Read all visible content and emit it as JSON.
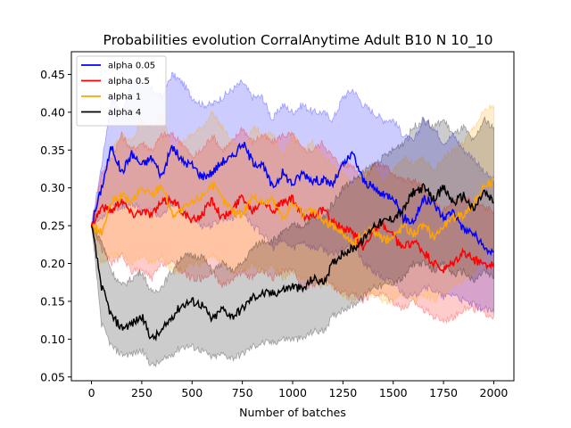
{
  "chart_data": {
    "type": "line",
    "title": "Probabilities evolution CorralAnytime Adult B10 N 10_10",
    "xlabel": "Number of batches",
    "ylabel": "",
    "xlim": [
      -100,
      2100
    ],
    "ylim": [
      0.045,
      0.48
    ],
    "xticks": [
      0,
      250,
      500,
      750,
      1000,
      1250,
      1500,
      1750,
      2000
    ],
    "xtick_labels": [
      "0",
      "250",
      "500",
      "750",
      "1000",
      "1250",
      "1500",
      "1750",
      "2000"
    ],
    "yticks": [
      0.05,
      0.1,
      0.15,
      0.2,
      0.25,
      0.3,
      0.35,
      0.4,
      0.45
    ],
    "ytick_labels": [
      "0.05",
      "0.10",
      "0.15",
      "0.20",
      "0.25",
      "0.30",
      "0.35",
      "0.40",
      "0.45"
    ],
    "grid": false,
    "legend_position": "top-left",
    "x": [
      0,
      50,
      100,
      150,
      200,
      250,
      300,
      350,
      400,
      450,
      500,
      550,
      600,
      650,
      700,
      750,
      800,
      850,
      900,
      950,
      1000,
      1050,
      1100,
      1150,
      1200,
      1250,
      1300,
      1350,
      1400,
      1450,
      1500,
      1550,
      1600,
      1650,
      1700,
      1750,
      1800,
      1850,
      1900,
      1950,
      2000
    ],
    "series": [
      {
        "name": "alpha 0.05",
        "color": "#0000ff",
        "values": [
          0.25,
          0.3,
          0.355,
          0.32,
          0.345,
          0.33,
          0.34,
          0.315,
          0.355,
          0.335,
          0.33,
          0.315,
          0.32,
          0.335,
          0.34,
          0.36,
          0.335,
          0.33,
          0.3,
          0.32,
          0.305,
          0.32,
          0.31,
          0.31,
          0.305,
          0.33,
          0.345,
          0.31,
          0.3,
          0.29,
          0.29,
          0.26,
          0.255,
          0.285,
          0.28,
          0.26,
          0.27,
          0.245,
          0.24,
          0.22,
          0.215
        ],
        "band_low": [
          0.25,
          0.26,
          0.28,
          0.27,
          0.28,
          0.27,
          0.27,
          0.26,
          0.28,
          0.27,
          0.26,
          0.25,
          0.25,
          0.26,
          0.26,
          0.27,
          0.25,
          0.24,
          0.22,
          0.23,
          0.22,
          0.23,
          0.22,
          0.22,
          0.21,
          0.22,
          0.23,
          0.2,
          0.19,
          0.18,
          0.175,
          0.16,
          0.155,
          0.17,
          0.165,
          0.155,
          0.16,
          0.15,
          0.145,
          0.14,
          0.135
        ],
        "band_high": [
          0.25,
          0.33,
          0.42,
          0.4,
          0.44,
          0.44,
          0.43,
          0.42,
          0.45,
          0.44,
          0.42,
          0.41,
          0.41,
          0.42,
          0.43,
          0.44,
          0.42,
          0.42,
          0.39,
          0.41,
          0.4,
          0.41,
          0.4,
          0.4,
          0.39,
          0.42,
          0.43,
          0.41,
          0.4,
          0.39,
          0.39,
          0.37,
          0.36,
          0.39,
          0.38,
          0.36,
          0.37,
          0.35,
          0.34,
          0.32,
          0.31
        ]
      },
      {
        "name": "alpha 0.5",
        "color": "#ff0000",
        "values": [
          0.25,
          0.275,
          0.27,
          0.285,
          0.265,
          0.27,
          0.265,
          0.28,
          0.285,
          0.27,
          0.255,
          0.265,
          0.285,
          0.26,
          0.27,
          0.29,
          0.27,
          0.285,
          0.27,
          0.28,
          0.285,
          0.26,
          0.265,
          0.27,
          0.255,
          0.245,
          0.24,
          0.22,
          0.245,
          0.25,
          0.235,
          0.22,
          0.23,
          0.215,
          0.2,
          0.19,
          0.2,
          0.215,
          0.205,
          0.2,
          0.2
        ],
        "band_low": [
          0.25,
          0.22,
          0.2,
          0.21,
          0.19,
          0.19,
          0.18,
          0.2,
          0.2,
          0.19,
          0.18,
          0.18,
          0.19,
          0.17,
          0.18,
          0.19,
          0.18,
          0.19,
          0.18,
          0.19,
          0.19,
          0.17,
          0.17,
          0.18,
          0.17,
          0.16,
          0.16,
          0.15,
          0.16,
          0.16,
          0.15,
          0.14,
          0.15,
          0.14,
          0.13,
          0.125,
          0.13,
          0.14,
          0.14,
          0.135,
          0.13
        ],
        "band_high": [
          0.25,
          0.32,
          0.34,
          0.37,
          0.35,
          0.36,
          0.35,
          0.37,
          0.37,
          0.36,
          0.34,
          0.35,
          0.37,
          0.35,
          0.36,
          0.38,
          0.36,
          0.37,
          0.36,
          0.37,
          0.37,
          0.35,
          0.35,
          0.36,
          0.34,
          0.33,
          0.33,
          0.31,
          0.33,
          0.33,
          0.32,
          0.31,
          0.31,
          0.3,
          0.28,
          0.27,
          0.28,
          0.29,
          0.28,
          0.275,
          0.27
        ]
      },
      {
        "name": "alpha 1",
        "color": "#ffa500",
        "values": [
          0.25,
          0.24,
          0.28,
          0.29,
          0.28,
          0.3,
          0.29,
          0.305,
          0.265,
          0.27,
          0.28,
          0.29,
          0.305,
          0.285,
          0.27,
          0.265,
          0.29,
          0.28,
          0.285,
          0.26,
          0.28,
          0.265,
          0.27,
          0.255,
          0.25,
          0.24,
          0.225,
          0.24,
          0.245,
          0.23,
          0.235,
          0.25,
          0.24,
          0.25,
          0.235,
          0.25,
          0.26,
          0.265,
          0.28,
          0.3,
          0.31
        ],
        "band_low": [
          0.25,
          0.2,
          0.21,
          0.21,
          0.2,
          0.21,
          0.2,
          0.21,
          0.19,
          0.19,
          0.2,
          0.2,
          0.21,
          0.2,
          0.19,
          0.19,
          0.2,
          0.19,
          0.2,
          0.18,
          0.19,
          0.18,
          0.18,
          0.17,
          0.17,
          0.16,
          0.15,
          0.16,
          0.16,
          0.15,
          0.15,
          0.16,
          0.15,
          0.16,
          0.15,
          0.16,
          0.17,
          0.18,
          0.19,
          0.21,
          0.22
        ],
        "band_high": [
          0.25,
          0.29,
          0.35,
          0.37,
          0.36,
          0.39,
          0.38,
          0.4,
          0.35,
          0.36,
          0.37,
          0.38,
          0.4,
          0.38,
          0.36,
          0.35,
          0.38,
          0.37,
          0.37,
          0.34,
          0.37,
          0.35,
          0.36,
          0.34,
          0.33,
          0.32,
          0.3,
          0.32,
          0.33,
          0.31,
          0.32,
          0.34,
          0.33,
          0.34,
          0.32,
          0.34,
          0.35,
          0.36,
          0.38,
          0.4,
          0.41
        ]
      },
      {
        "name": "alpha 4",
        "color": "#000000",
        "values": [
          0.25,
          0.17,
          0.13,
          0.115,
          0.12,
          0.13,
          0.1,
          0.11,
          0.13,
          0.145,
          0.15,
          0.145,
          0.125,
          0.14,
          0.13,
          0.14,
          0.155,
          0.16,
          0.16,
          0.165,
          0.17,
          0.165,
          0.18,
          0.175,
          0.2,
          0.215,
          0.22,
          0.23,
          0.25,
          0.255,
          0.26,
          0.27,
          0.295,
          0.3,
          0.285,
          0.3,
          0.28,
          0.29,
          0.27,
          0.295,
          0.28
        ],
        "band_low": [
          0.25,
          0.12,
          0.09,
          0.08,
          0.08,
          0.085,
          0.065,
          0.07,
          0.08,
          0.09,
          0.09,
          0.085,
          0.075,
          0.08,
          0.075,
          0.08,
          0.09,
          0.095,
          0.095,
          0.1,
          0.1,
          0.1,
          0.11,
          0.11,
          0.13,
          0.14,
          0.145,
          0.155,
          0.17,
          0.17,
          0.175,
          0.18,
          0.2,
          0.2,
          0.19,
          0.2,
          0.185,
          0.19,
          0.175,
          0.19,
          0.18
        ],
        "band_high": [
          0.25,
          0.23,
          0.19,
          0.17,
          0.18,
          0.19,
          0.16,
          0.17,
          0.19,
          0.21,
          0.21,
          0.21,
          0.19,
          0.2,
          0.19,
          0.2,
          0.22,
          0.23,
          0.23,
          0.24,
          0.25,
          0.25,
          0.26,
          0.26,
          0.28,
          0.3,
          0.31,
          0.32,
          0.33,
          0.34,
          0.35,
          0.36,
          0.38,
          0.39,
          0.38,
          0.39,
          0.37,
          0.38,
          0.36,
          0.39,
          0.38
        ]
      }
    ]
  }
}
